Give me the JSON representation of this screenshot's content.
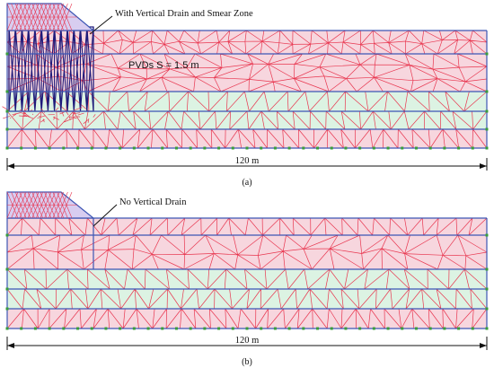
{
  "panel_a": {
    "annotation": "With Vertical Drain and Smear Zone",
    "spacing_label": "PVDs S = 1.5 m",
    "dimension_label": "120 m",
    "caption": "(a)"
  },
  "panel_b": {
    "annotation": "No Vertical Drain",
    "dimension_label": "120 m",
    "caption": "(b)"
  },
  "colors": {
    "mesh_line": "#e8364f",
    "boundary_line": "#3c56b4",
    "drain_line": "#1e1a7a",
    "fill_pink": "#f7d6de",
    "fill_mint": "#dcf3e3",
    "fill_lavender": "#d8cdf0",
    "node_green": "#3a9e3a"
  }
}
